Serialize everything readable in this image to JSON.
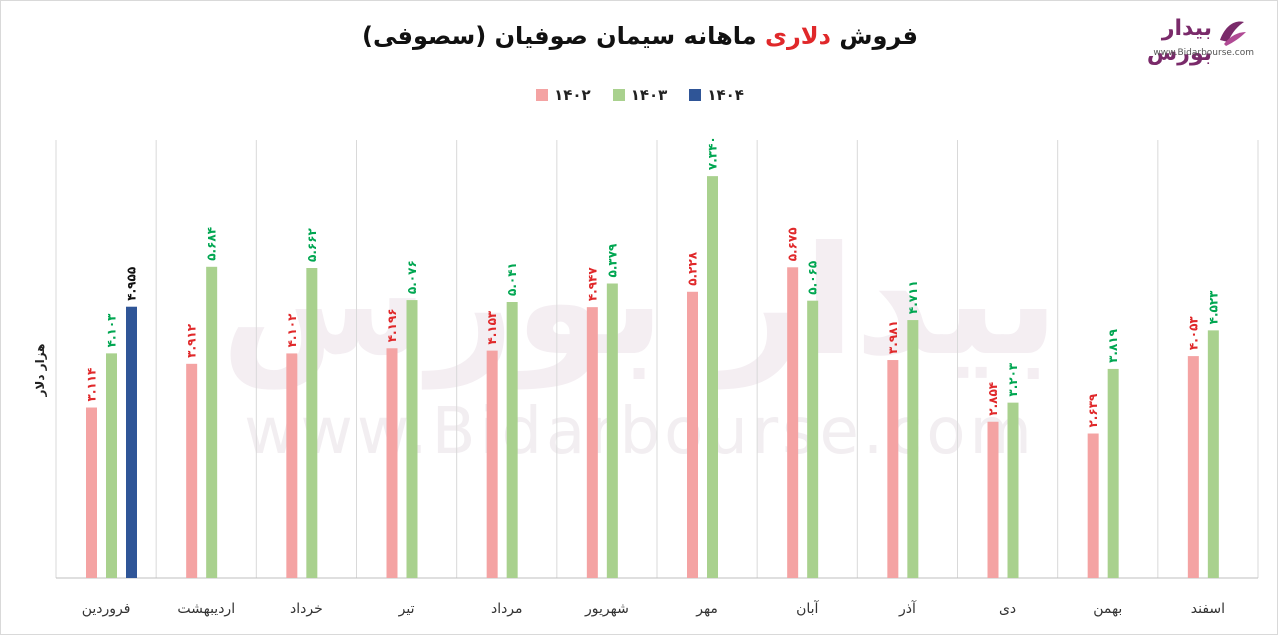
{
  "title": {
    "part1": "فروش",
    "accent": "دلاری",
    "part2": "ماهانه سیمان صوفیان (سصوفی)"
  },
  "logo": {
    "name": "بیدار بورس",
    "url": "www.Bidarbourse.com"
  },
  "watermark": {
    "brand": "بیدار بورس",
    "url": "www.Bidarbourse.com"
  },
  "colors": {
    "s1402": "#f4a3a3",
    "s1403": "#a9d18e",
    "s1404": "#2f5597",
    "label1402": "#e0282a",
    "label1403": "#00a651",
    "label1404": "#111111",
    "grid": "#d9d9d9"
  },
  "chart_data": {
    "type": "bar",
    "title": "فروش دلاری ماهانه سیمان صوفیان (سصوفی)",
    "ylabel": "هزار دلار",
    "xlabel": "",
    "legend_position": "top-center",
    "grid": "vertical category separators",
    "ylim": [
      0,
      8
    ],
    "categories": [
      "فروردین",
      "اردیبهشت",
      "خرداد",
      "تیر",
      "مرداد",
      "شهریور",
      "مهر",
      "آبان",
      "آذر",
      "دی",
      "بهمن",
      "اسفند"
    ],
    "series": [
      {
        "name": "۱۴۰۲",
        "values": [
          3.114,
          3.912,
          4.102,
          4.196,
          4.153,
          4.947,
          5.228,
          5.675,
          3.981,
          2.854,
          2.639,
          4.053
        ],
        "labels": [
          "۳.۱۱۴",
          "۳.۹۱۲",
          "۴.۱۰۲",
          "۴.۱۹۶",
          "۴.۱۵۳",
          "۴.۹۴۷",
          "۵.۲۲۸",
          "۵.۶۷۵",
          "۳.۹۸۱",
          "۲.۸۵۴",
          "۲.۶۳۹",
          "۴.۰۵۳"
        ]
      },
      {
        "name": "۱۴۰۳",
        "values": [
          4.103,
          5.684,
          5.662,
          5.076,
          5.041,
          5.379,
          7.34,
          5.065,
          4.711,
          3.203,
          3.819,
          4.523
        ],
        "labels": [
          "۴.۱۰۳",
          "۵.۶۸۴",
          "۵.۶۶۲",
          "۵.۰۷۶",
          "۵.۰۴۱",
          "۵.۳۷۹",
          "۷.۳۴۰",
          "۵.۰۶۵",
          "۴.۷۱۱",
          "۳.۲۰۳",
          "۳.۸۱۹",
          "۴.۵۲۳"
        ]
      },
      {
        "name": "۱۴۰۴",
        "values": [
          4.955,
          null,
          null,
          null,
          null,
          null,
          null,
          null,
          null,
          null,
          null,
          null
        ],
        "labels": [
          "۴.۹۵۵",
          "",
          "",
          "",
          "",
          "",
          "",
          "",
          "",
          "",
          "",
          ""
        ]
      }
    ]
  }
}
